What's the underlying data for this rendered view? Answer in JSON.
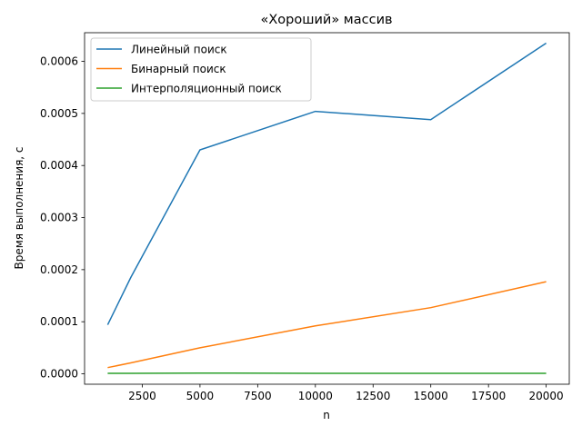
{
  "chart_data": {
    "type": "line",
    "title": "«Хороший» массив",
    "xlabel": "n",
    "ylabel": "Время выполнения, с",
    "x": [
      1000,
      2000,
      5000,
      10000,
      15000,
      20000
    ],
    "xlim": [
      0,
      21000
    ],
    "ylim": [
      -2e-05,
      0.000655
    ],
    "xticks": [
      2500,
      5000,
      7500,
      10000,
      12500,
      15000,
      17500,
      20000
    ],
    "xtick_labels": [
      "2500",
      "5000",
      "7500",
      "10000",
      "12500",
      "15000",
      "17500",
      "20000"
    ],
    "yticks": [
      0,
      0.0001,
      0.0002,
      0.0003,
      0.0004,
      0.0005,
      0.0006
    ],
    "ytick_labels": [
      "0.0000",
      "0.0001",
      "0.0002",
      "0.0003",
      "0.0004",
      "0.0005",
      "0.0006"
    ],
    "grid": false,
    "legend_position": "top-left",
    "series": [
      {
        "name": "Линейный поиск",
        "color": "#1f77b4",
        "values": [
          9.4e-05,
          0.000185,
          0.00043,
          0.000504,
          0.000488,
          0.000635
        ]
      },
      {
        "name": "Бинарный поиск",
        "color": "#ff7f0e",
        "values": [
          1.2e-05,
          2.1e-05,
          5e-05,
          9.2e-05,
          0.000127,
          0.000177
        ]
      },
      {
        "name": "Интерполяционный поиск",
        "color": "#2ca02c",
        "values": [
          1e-06,
          1e-06,
          1.5e-06,
          1e-06,
          1e-06,
          1e-06
        ]
      }
    ]
  }
}
